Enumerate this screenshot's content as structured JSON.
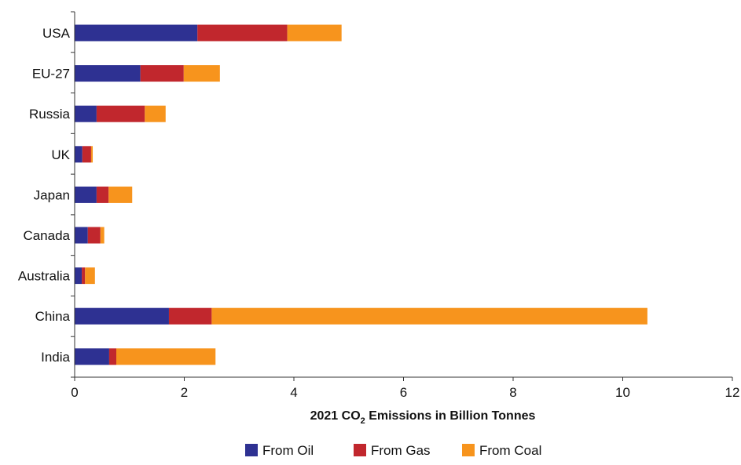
{
  "chart_data": {
    "type": "bar",
    "orientation": "horizontal",
    "stacked": true,
    "title": "",
    "xlabel": {
      "prefix": "2021 CO",
      "subscript": "2",
      "suffix": " Emissions in Billion Tonnes"
    },
    "ylabel": "",
    "categories": [
      "USA",
      "EU-27",
      "Russia",
      "UK",
      "Japan",
      "Canada",
      "Australia",
      "China",
      "India"
    ],
    "series": [
      {
        "name": "From Oil",
        "color": "#2e3192",
        "values": [
          2.24,
          1.2,
          0.4,
          0.14,
          0.4,
          0.24,
          0.13,
          1.72,
          0.63
        ]
      },
      {
        "name": "From Gas",
        "color": "#c1272d",
        "values": [
          1.64,
          0.79,
          0.88,
          0.16,
          0.22,
          0.23,
          0.06,
          0.78,
          0.13
        ]
      },
      {
        "name": "From Coal",
        "color": "#f7941d",
        "values": [
          0.99,
          0.66,
          0.38,
          0.03,
          0.43,
          0.07,
          0.18,
          7.95,
          1.81
        ]
      }
    ],
    "xlim": [
      0,
      12
    ],
    "xticks": [
      0,
      2,
      4,
      6,
      8,
      10,
      12
    ],
    "xtick_labels": [
      "0",
      "2",
      "4",
      "6",
      "8",
      "10",
      "12"
    ],
    "grid": false,
    "legend_position": "bottom"
  }
}
